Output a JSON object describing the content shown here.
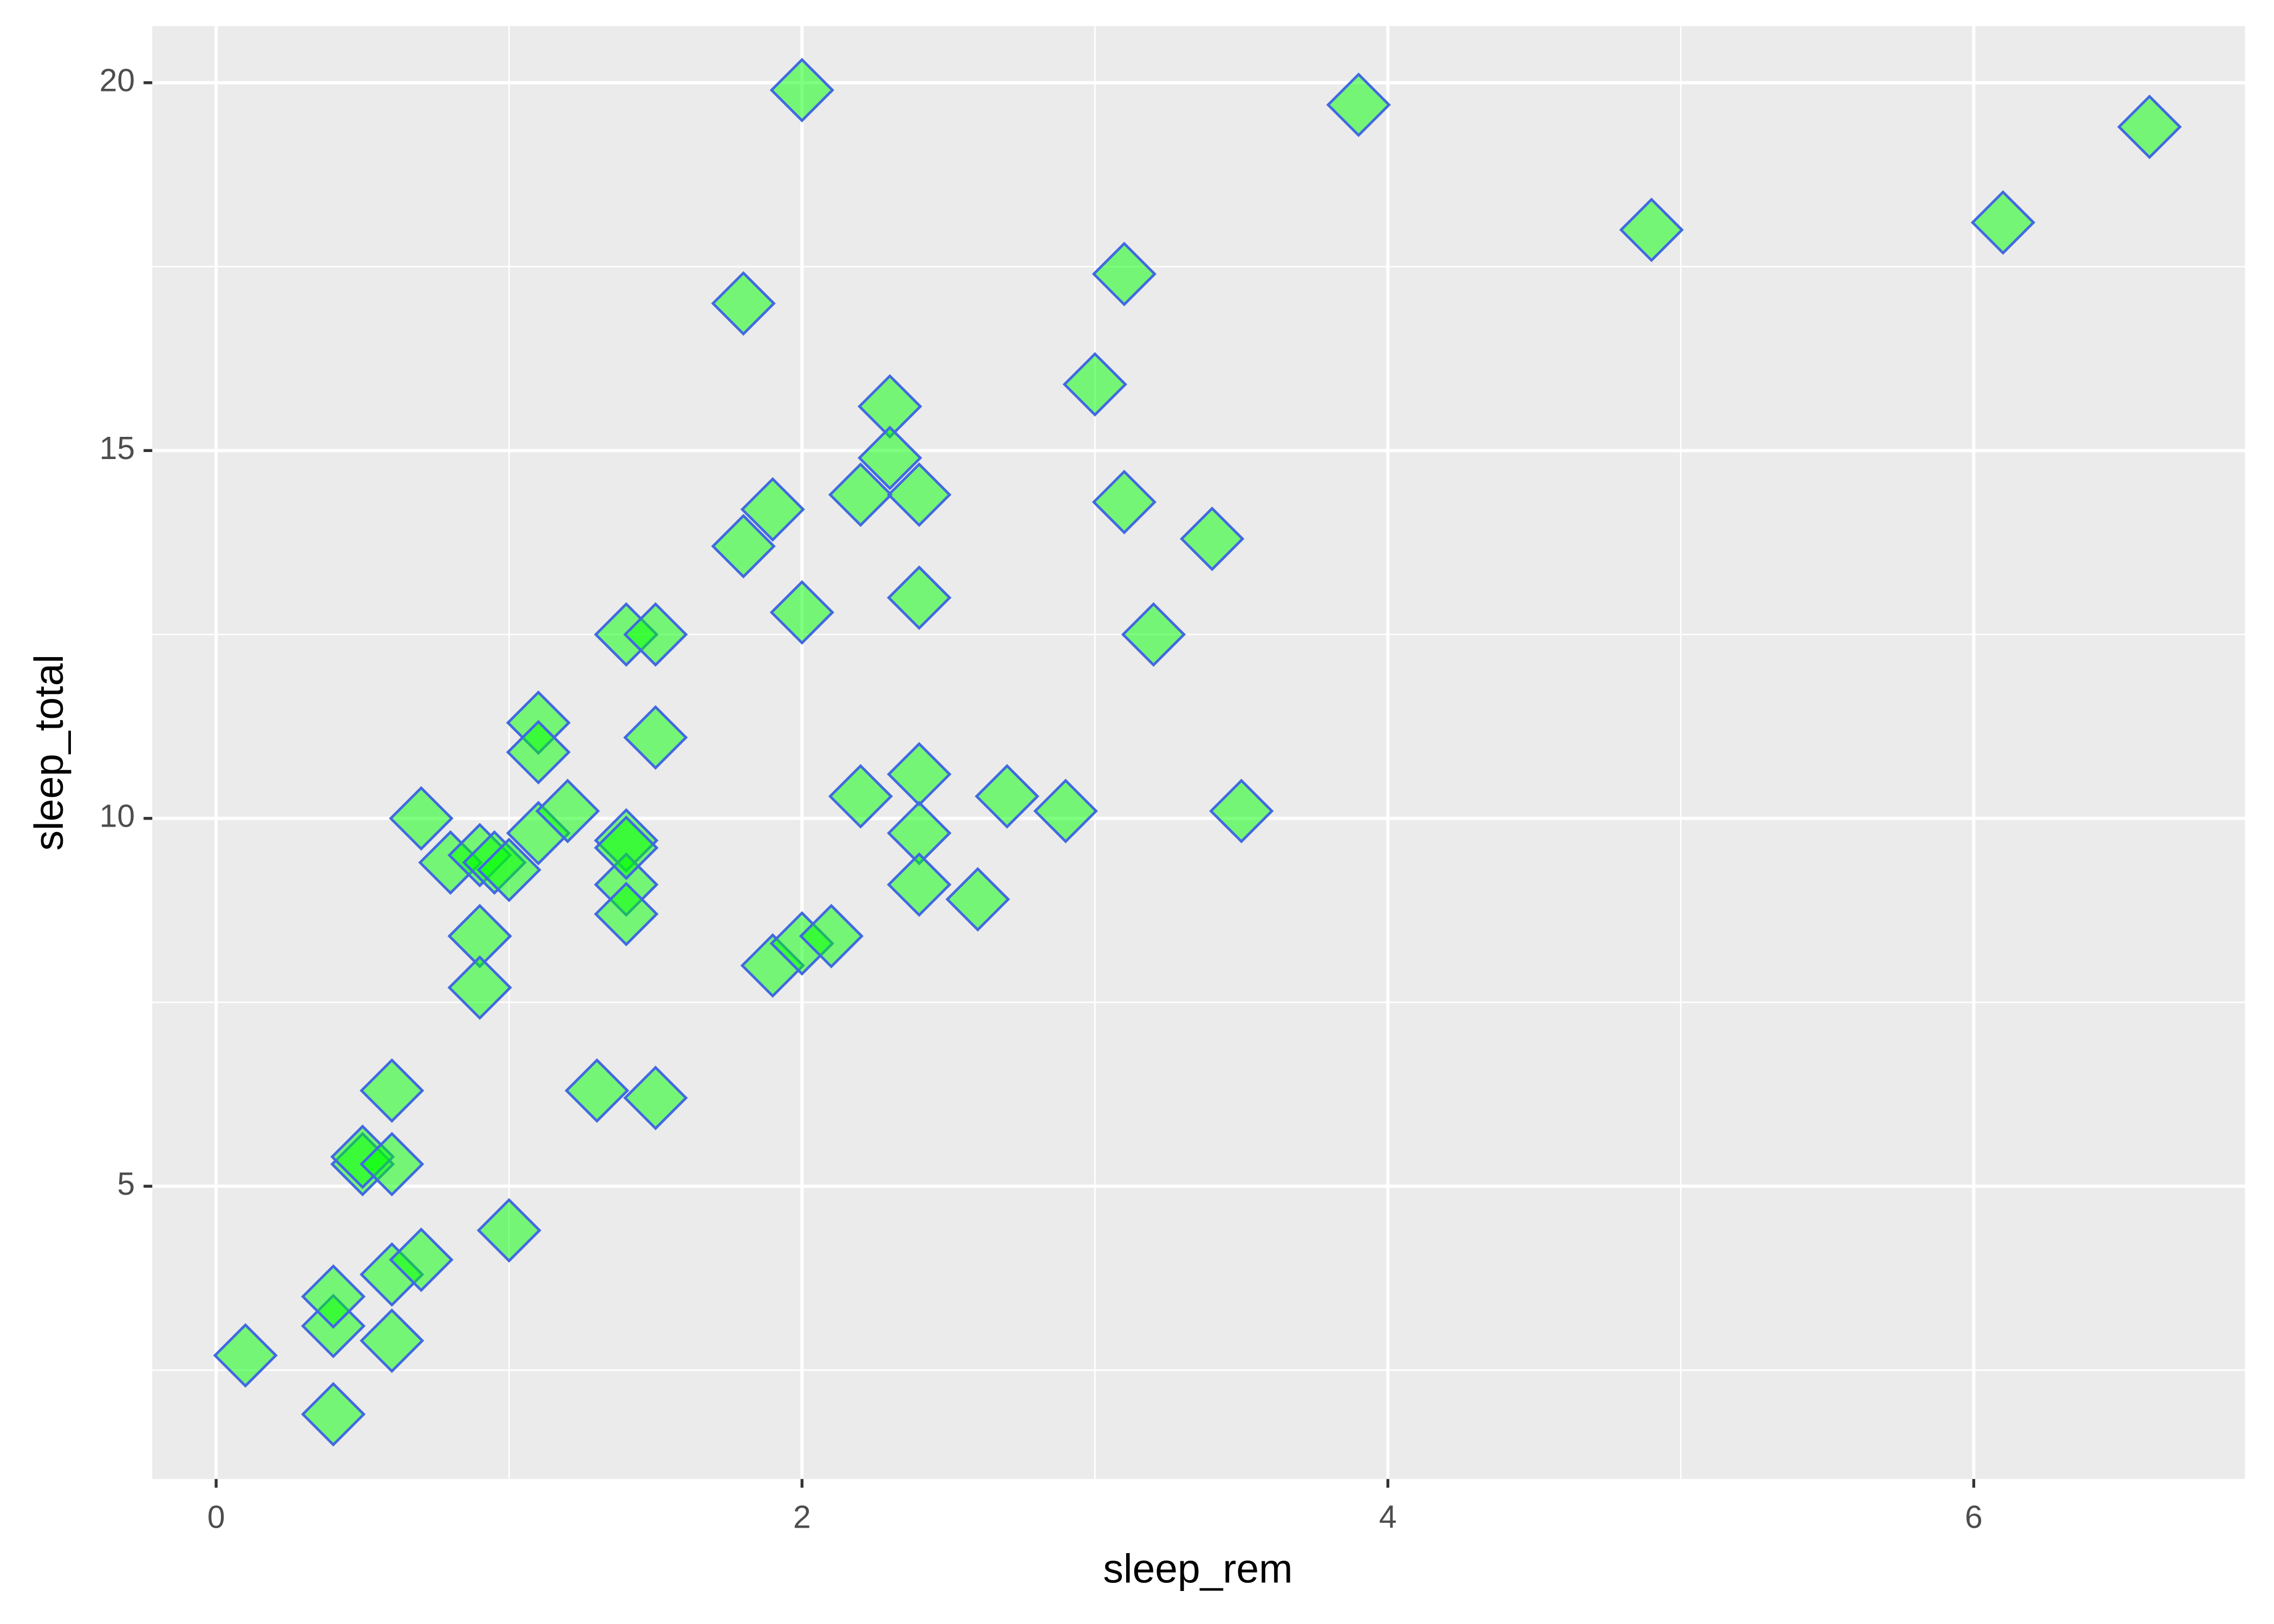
{
  "chart_data": {
    "type": "scatter",
    "x_label": "sleep_rem",
    "y_label": "sleep_total",
    "x": [
      0.1,
      0.4,
      0.4,
      0.4,
      0.5,
      0.5,
      0.6,
      0.6,
      0.6,
      0.6,
      0.7,
      0.7,
      0.8,
      0.9,
      0.9,
      0.9,
      0.95,
      1.0,
      1.0,
      1.1,
      1.1,
      1.1,
      1.2,
      1.3,
      1.4,
      1.4,
      1.4,
      1.4,
      1.4,
      1.5,
      1.5,
      1.5,
      1.8,
      1.8,
      1.9,
      1.9,
      2.0,
      2.0,
      2.0,
      2.1,
      2.2,
      2.2,
      2.3,
      2.3,
      2.4,
      2.4,
      2.4,
      2.4,
      2.4,
      2.6,
      2.7,
      2.9,
      3.0,
      3.1,
      3.1,
      3.2,
      3.4,
      3.5,
      3.9,
      4.9,
      6.1,
      6.6
    ],
    "values": [
      2.7,
      1.9,
      3.1,
      3.5,
      5.3,
      5.4,
      2.9,
      3.8,
      5.3,
      6.3,
      4.0,
      10.0,
      9.4,
      9.5,
      8.4,
      7.7,
      9.4,
      4.4,
      9.3,
      9.8,
      11.3,
      10.9,
      10.1,
      6.3,
      9.7,
      9.1,
      8.7,
      12.5,
      9.6,
      12.5,
      11.1,
      6.2,
      17.0,
      13.7,
      14.2,
      8.0,
      19.9,
      12.8,
      8.3,
      8.4,
      14.4,
      10.3,
      15.6,
      14.9,
      14.4,
      13.0,
      10.6,
      9.8,
      9.1,
      8.9,
      10.3,
      10.1,
      15.9,
      17.4,
      14.3,
      12.5,
      13.8,
      10.1,
      19.7,
      18.0,
      18.1,
      19.4
    ],
    "color": "lime",
    "edgecolor": "royalblue",
    "alpha": 0.5,
    "marker": "diamond",
    "xlim": [
      -0.218,
      6.926
    ],
    "ylim": [
      1.02,
      20.77
    ],
    "xticks": [
      0,
      2,
      4,
      6
    ],
    "yticks": [
      5,
      10,
      15,
      20
    ],
    "minor_xgrid": [
      1,
      3,
      5
    ],
    "minor_ygrid": [
      2.5,
      7.5,
      12.5,
      17.5
    ],
    "grid": true
  }
}
